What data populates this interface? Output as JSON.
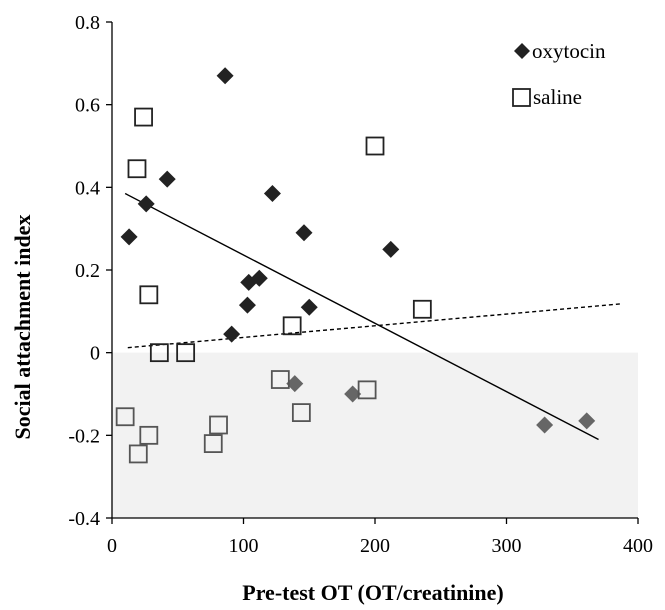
{
  "chart_data": {
    "type": "scatter",
    "xlabel": "Pre-test OT (OT/creatinine)",
    "ylabel": "Social attachment index",
    "xlim": [
      0,
      400
    ],
    "ylim": [
      -0.4,
      0.8
    ],
    "x_ticks": [
      0,
      100,
      200,
      300,
      400
    ],
    "y_ticks": [
      -0.4,
      -0.2,
      0,
      0.2,
      0.4,
      0.6,
      0.8
    ],
    "x_tick_labels": [
      "0",
      "100",
      "200",
      "300",
      "400"
    ],
    "y_tick_labels": [
      "-0.4",
      "-0.2",
      "0",
      "0.2",
      "0.4",
      "0.6",
      "0.8"
    ],
    "grid": false,
    "legend_position": "top-right",
    "negative_region_shading": "#f2f2f2",
    "series": [
      {
        "name": "oxytocin",
        "marker": "diamond",
        "color": "#222222",
        "negative_color": "#666666",
        "points": [
          {
            "x": 13,
            "y": 0.28
          },
          {
            "x": 26,
            "y": 0.36
          },
          {
            "x": 42,
            "y": 0.42
          },
          {
            "x": 86,
            "y": 0.67
          },
          {
            "x": 91,
            "y": 0.045
          },
          {
            "x": 103,
            "y": 0.115
          },
          {
            "x": 104,
            "y": 0.17
          },
          {
            "x": 112,
            "y": 0.18
          },
          {
            "x": 122,
            "y": 0.385
          },
          {
            "x": 146,
            "y": 0.29
          },
          {
            "x": 150,
            "y": 0.11
          },
          {
            "x": 212,
            "y": 0.25
          },
          {
            "x": 139,
            "y": -0.075
          },
          {
            "x": 183,
            "y": -0.1
          },
          {
            "x": 329,
            "y": -0.175
          },
          {
            "x": 361,
            "y": -0.165
          }
        ],
        "trendline": {
          "style": "solid",
          "from": [
            10,
            0.385
          ],
          "to": [
            370,
            -0.21
          ]
        }
      },
      {
        "name": "saline",
        "marker": "square-open",
        "color": "#222222",
        "negative_color": "#555555",
        "points": [
          {
            "x": 10,
            "y": -0.155
          },
          {
            "x": 19,
            "y": 0.445
          },
          {
            "x": 20,
            "y": -0.245
          },
          {
            "x": 24,
            "y": 0.57
          },
          {
            "x": 28,
            "y": 0.14
          },
          {
            "x": 28,
            "y": -0.2
          },
          {
            "x": 36,
            "y": 0.0
          },
          {
            "x": 56,
            "y": 0.0
          },
          {
            "x": 77,
            "y": -0.22
          },
          {
            "x": 81,
            "y": -0.175
          },
          {
            "x": 128,
            "y": -0.065
          },
          {
            "x": 137,
            "y": 0.065
          },
          {
            "x": 144,
            "y": -0.145
          },
          {
            "x": 194,
            "y": -0.09
          },
          {
            "x": 200,
            "y": 0.5
          },
          {
            "x": 236,
            "y": 0.105
          }
        ],
        "trendline": {
          "style": "dashed",
          "from": [
            12,
            0.012
          ],
          "to": [
            387,
            0.118
          ]
        }
      }
    ]
  }
}
